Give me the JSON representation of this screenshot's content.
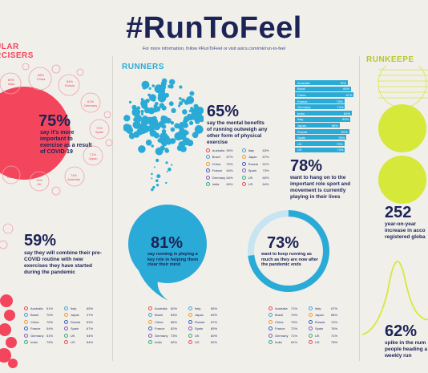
{
  "header": {
    "title": "#RunToFeel",
    "subtitle": "For more information, follow #RunToFeel or visit asics.com/mk/run-to-feel"
  },
  "sections": {
    "exercisers": "ULAR\nRCISERS",
    "runners": "RUNNERS",
    "runkeepers": "RUNKEEPE"
  },
  "stats": {
    "s75": {
      "value": "75%",
      "text": "say it's more important to exercise as a result of COVID-19"
    },
    "s65": {
      "value": "65%",
      "text": "say the mental benefits of running outweigh any other form of physical exercise"
    },
    "s78": {
      "value": "78%",
      "text": "want to hang on to the important role sport and movement is currently playing in their lives"
    },
    "s59": {
      "value": "59%",
      "text": "say they will combine their pre-COVID routine with new exercises they have started during the pandemic"
    },
    "s81": {
      "value": "81%",
      "text": "say running is playing a key role in helping them clear their mind"
    },
    "s73": {
      "value": "73%",
      "text": "want to keep running as much as they are now after the pandemic ends"
    },
    "s252": {
      "value": "252",
      "text": "year-on-year increase in acco registered globa"
    },
    "s62": {
      "value": "62%",
      "text": "spike in the num people heading a weekly run"
    }
  },
  "ring_countries": [
    {
      "label": "India",
      "value": "89%"
    },
    {
      "label": "China",
      "value": "88%"
    },
    {
      "label": "Russia",
      "value": "84%"
    },
    {
      "label": "Germany",
      "value": "61%"
    },
    {
      "label": "Spain",
      "value": "71%"
    },
    {
      "label": "Japan",
      "value": "71%"
    },
    {
      "label": "Australia",
      "value": "74%"
    },
    {
      "label": "UK",
      "value": "74%"
    },
    {
      "label": "Brazil",
      "value": "76%"
    }
  ],
  "table65": [
    [
      "Australia",
      "59%",
      "Italy",
      "63%"
    ],
    [
      "Brazil",
      "67%",
      "Japan",
      "67%"
    ],
    [
      "China",
      "70%",
      "Russia",
      "51%"
    ],
    [
      "France",
      "64%",
      "Spain",
      "73%"
    ],
    [
      "Germany",
      "64%",
      "UK",
      "60%"
    ],
    [
      "India",
      "63%",
      "US",
      "64%"
    ]
  ],
  "bars78": [
    [
      "Australia",
      "78%"
    ],
    [
      "Brazil",
      "83%"
    ],
    [
      "China",
      "87%"
    ],
    [
      "France",
      "73%"
    ],
    [
      "Germany",
      "74%"
    ],
    [
      "India",
      "84%"
    ],
    [
      "Italy",
      "82%"
    ],
    [
      "Japan",
      "66%"
    ],
    [
      "Russia",
      "80%"
    ],
    [
      "Spain",
      "76%"
    ],
    [
      "UK",
      "73%"
    ],
    [
      "US",
      "74%"
    ]
  ],
  "table59": [
    [
      "Australia",
      "51%",
      "Italy",
      "65%"
    ],
    [
      "Brazil",
      "70%",
      "Japan",
      "47%"
    ],
    [
      "China",
      "70%",
      "Russia",
      "63%"
    ],
    [
      "France",
      "54%",
      "Spain",
      "67%"
    ],
    [
      "Germany",
      "51%",
      "UK",
      "54%"
    ],
    [
      "India",
      "79%",
      "US",
      "54%"
    ]
  ],
  "table81": [
    [
      "Australia",
      "80%",
      "Italy",
      "85%"
    ],
    [
      "Brazil",
      "83%",
      "Japan",
      "69%"
    ],
    [
      "China",
      "86%",
      "Russia",
      "87%"
    ],
    [
      "France",
      "82%",
      "Spain",
      "85%"
    ],
    [
      "Germany",
      "73%",
      "UK",
      "80%"
    ],
    [
      "India",
      "82%",
      "US",
      "82%"
    ]
  ],
  "table73": [
    [
      "Australia",
      "71%",
      "Italy",
      "67%"
    ],
    [
      "Brazil",
      "70%",
      "Japan",
      "68%"
    ],
    [
      "China",
      "79%",
      "Russia",
      "74%"
    ],
    [
      "France",
      "72%",
      "Spain",
      "76%"
    ],
    [
      "Germany",
      "71%",
      "UK",
      "71%"
    ],
    [
      "India",
      "81%",
      "US",
      "75%"
    ]
  ],
  "colors": {
    "navy": "#1b2357",
    "coral": "#f3465c",
    "blue": "#2aaad6",
    "lime": "#d6e83a",
    "bg": "#f1efe9"
  }
}
